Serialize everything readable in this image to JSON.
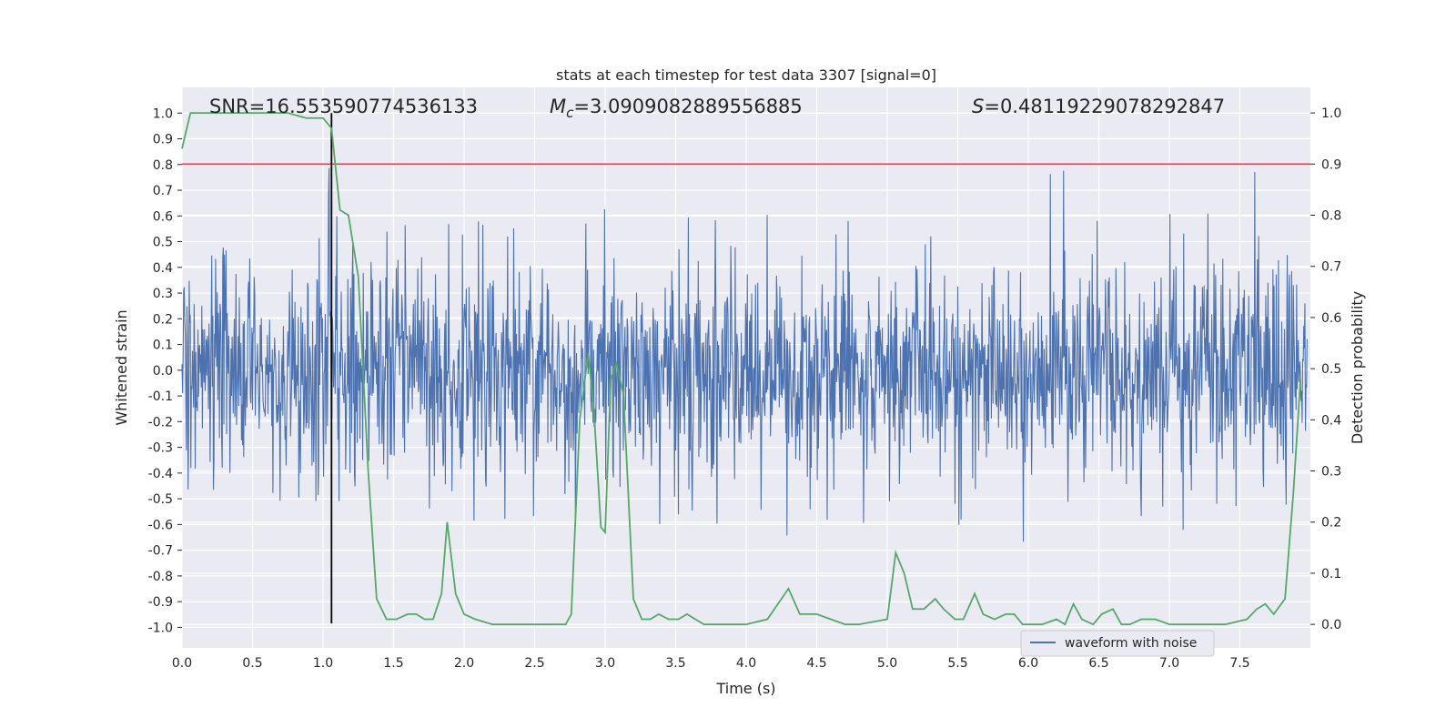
{
  "chart_data": {
    "type": "line",
    "title": "stats at each timestep for test data 3307 [signal=0]",
    "xlabel": "Time (s)",
    "ylabel": "Whitened strain",
    "y2label": "Detection probability",
    "xlim": [
      0.0,
      8.0
    ],
    "ylim": [
      -1.08,
      1.1
    ],
    "y2lim": [
      -0.046,
      1.05
    ],
    "x_ticks": [
      "0.0",
      "0.5",
      "1.0",
      "1.5",
      "2.0",
      "2.5",
      "3.0",
      "3.5",
      "4.0",
      "4.5",
      "5.0",
      "5.5",
      "6.0",
      "6.5",
      "7.0",
      "7.5"
    ],
    "y_ticks": [
      "1.0",
      "0.9",
      "0.8",
      "0.7",
      "0.6",
      "0.5",
      "0.4",
      "0.3",
      "0.2",
      "0.1",
      "0.0",
      "-0.1",
      "-0.2",
      "-0.3",
      "-0.4",
      "-0.5",
      "-0.6",
      "-0.7",
      "-0.8",
      "-0.9",
      "-1.0"
    ],
    "y2_ticks": [
      "1.0",
      "0.9",
      "0.8",
      "0.7",
      "0.6",
      "0.5",
      "0.4",
      "0.3",
      "0.2",
      "0.1",
      "0.0"
    ],
    "grid": true,
    "legend": {
      "position": "bottom-right",
      "entries": [
        "waveform with noise"
      ]
    },
    "annotations": {
      "snr": "SNR=16.553590774536133",
      "mc_symbol": "M",
      "mc_sub": "c",
      "mc_value": "=3.0909082889556885",
      "s_symbol": "S",
      "s_value": "=0.48119229078292847"
    },
    "threshold_probability": 0.9,
    "marker_time": 1.06,
    "waveform": {
      "name": "waveform with noise",
      "color": "#4c72b0",
      "sample_rate": 256,
      "duration": 8.0,
      "envelope": [
        [
          0.0,
          0.5
        ],
        [
          1.0,
          0.52
        ],
        [
          1.06,
          0.9
        ],
        [
          1.12,
          0.55
        ],
        [
          2.7,
          0.62
        ],
        [
          2.9,
          0.72
        ],
        [
          3.2,
          0.6
        ],
        [
          4.2,
          0.62
        ],
        [
          4.3,
          0.75
        ],
        [
          4.5,
          0.58
        ],
        [
          6.1,
          0.68
        ],
        [
          6.2,
          0.85
        ],
        [
          6.4,
          0.6
        ],
        [
          7.5,
          0.7
        ],
        [
          7.6,
          0.8
        ],
        [
          8.0,
          0.6
        ]
      ]
    },
    "probability": {
      "name": "detection probability",
      "color": "#55a868",
      "x": [
        0.0,
        0.06,
        0.3,
        0.55,
        0.75,
        0.88,
        1.0,
        1.06,
        1.12,
        1.18,
        1.25,
        1.32,
        1.38,
        1.45,
        1.52,
        1.6,
        1.66,
        1.72,
        1.78,
        1.84,
        1.88,
        1.94,
        2.0,
        2.08,
        2.2,
        2.35,
        2.5,
        2.65,
        2.72,
        2.76,
        2.82,
        2.88,
        2.92,
        2.97,
        3.0,
        3.04,
        3.08,
        3.13,
        3.2,
        3.26,
        3.32,
        3.38,
        3.45,
        3.52,
        3.58,
        3.64,
        3.7,
        3.8,
        4.0,
        4.15,
        4.3,
        4.38,
        4.5,
        4.6,
        4.7,
        4.8,
        5.0,
        5.06,
        5.12,
        5.18,
        5.26,
        5.34,
        5.4,
        5.48,
        5.54,
        5.62,
        5.68,
        5.76,
        5.84,
        5.9,
        5.96,
        6.05,
        6.1,
        6.2,
        6.26,
        6.32,
        6.38,
        6.46,
        6.52,
        6.6,
        6.66,
        6.72,
        6.8,
        6.9,
        7.0,
        7.2,
        7.4,
        7.55,
        7.62,
        7.68,
        7.74,
        7.82,
        7.88,
        7.93
      ],
      "y": [
        0.93,
        1.0,
        1.0,
        1.0,
        1.0,
        0.99,
        0.99,
        0.97,
        0.81,
        0.8,
        0.68,
        0.3,
        0.05,
        0.01,
        0.01,
        0.02,
        0.02,
        0.01,
        0.01,
        0.06,
        0.2,
        0.06,
        0.02,
        0.01,
        0.0,
        0.0,
        0.0,
        0.0,
        0.0,
        0.02,
        0.4,
        0.53,
        0.42,
        0.19,
        0.18,
        0.48,
        0.51,
        0.45,
        0.05,
        0.01,
        0.01,
        0.02,
        0.01,
        0.01,
        0.02,
        0.01,
        0.0,
        0.0,
        0.0,
        0.01,
        0.07,
        0.02,
        0.02,
        0.01,
        0.0,
        0.0,
        0.01,
        0.14,
        0.1,
        0.03,
        0.03,
        0.05,
        0.03,
        0.01,
        0.01,
        0.06,
        0.02,
        0.01,
        0.02,
        0.02,
        0.0,
        0.0,
        0.0,
        0.01,
        0.0,
        0.04,
        0.01,
        0.0,
        0.02,
        0.03,
        0.0,
        0.0,
        0.01,
        0.01,
        0.0,
        0.0,
        0.0,
        0.01,
        0.03,
        0.04,
        0.02,
        0.05,
        0.26,
        0.48
      ]
    }
  }
}
